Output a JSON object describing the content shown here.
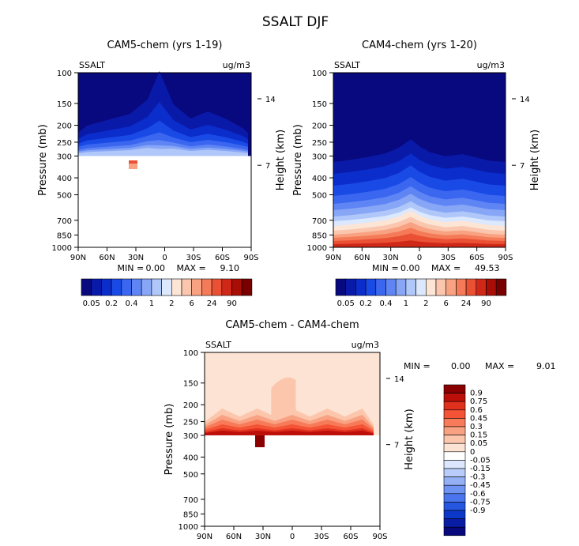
{
  "title": "SSALT DJF",
  "chart_data": [
    {
      "type": "contour",
      "id": "cam5",
      "title": "CAM5-chem (yrs 1-19)",
      "field_label": "SSALT",
      "units": "ug/m3",
      "ylabel": "Pressure (mb)",
      "ylabel_right": "Height (km)",
      "x_ticks": [
        "90N",
        "60N",
        "30N",
        "0",
        "30S",
        "60S",
        "90S"
      ],
      "y_ticks": [
        100,
        150,
        200,
        250,
        300,
        400,
        500,
        700,
        850,
        1000
      ],
      "height_ticks": [
        14,
        7
      ],
      "stats": {
        "min_label": "MIN =",
        "min": "0.00",
        "max_label": "MAX =",
        "max": "9.10"
      },
      "cloud_ceiling_mb": 300
    },
    {
      "type": "contour",
      "id": "cam4",
      "title": "CAM4-chem (yrs 1-20)",
      "field_label": "SSALT",
      "units": "ug/m3",
      "ylabel": "Pressure (mb)",
      "ylabel_right": "Height (km)",
      "x_ticks": [
        "90N",
        "60N",
        "30N",
        "0",
        "30S",
        "60S",
        "90S"
      ],
      "y_ticks": [
        100,
        150,
        200,
        250,
        300,
        400,
        500,
        700,
        850,
        1000
      ],
      "height_ticks": [
        14,
        7
      ],
      "stats": {
        "min_label": "MIN =",
        "min": "0.00",
        "max_label": "MAX =",
        "max": "49.53"
      }
    },
    {
      "type": "contour",
      "id": "diff",
      "title": "CAM5-chem - CAM4-chem",
      "field_label": "SSALT",
      "units": "ug/m3",
      "ylabel": "Pressure (mb)",
      "ylabel_right": "Height (km)",
      "x_ticks": [
        "90N",
        "60N",
        "30N",
        "0",
        "30S",
        "60S",
        "90S"
      ],
      "y_ticks": [
        100,
        150,
        200,
        250,
        300,
        400,
        500,
        700,
        850,
        1000
      ],
      "height_ticks": [
        14,
        7
      ],
      "stats": {
        "min_label": "MIN =",
        "min": "0.00",
        "max_label": "MAX =",
        "max": "9.01"
      }
    }
  ],
  "colorbar_top": {
    "colors": [
      "#08087f",
      "#0a1aa8",
      "#0b2dcc",
      "#1a4ae6",
      "#3a66f0",
      "#5f85f4",
      "#87a6f6",
      "#b0c7fa",
      "#dbe8fd",
      "#fde5d6",
      "#fbc6ae",
      "#f8a282",
      "#f47a58",
      "#ea5134",
      "#cf2818",
      "#a90e06",
      "#7a0000"
    ],
    "labels": [
      "0.05",
      "0.2",
      "0.4",
      "1",
      "2",
      "6",
      "24",
      "90"
    ]
  },
  "colorbar_diff": {
    "colors": [
      "#8a0000",
      "#bc0f0a",
      "#e0301e",
      "#f45335",
      "#f77b59",
      "#f9a283",
      "#fcc6ad",
      "#fde3d3",
      "#ffffff",
      "#dce7fd",
      "#b8cdf9",
      "#94b1f6",
      "#6f93f3",
      "#4a75ef",
      "#2456e0",
      "#0b38c8",
      "#091ca6",
      "#07077e"
    ],
    "labels": [
      "0.9",
      "0.75",
      "0.6",
      "0.45",
      "0.3",
      "0.15",
      "0.05",
      "0",
      "-0.05",
      "-0.15",
      "-0.3",
      "-0.45",
      "-0.6",
      "-0.75",
      "-0.9"
    ]
  }
}
